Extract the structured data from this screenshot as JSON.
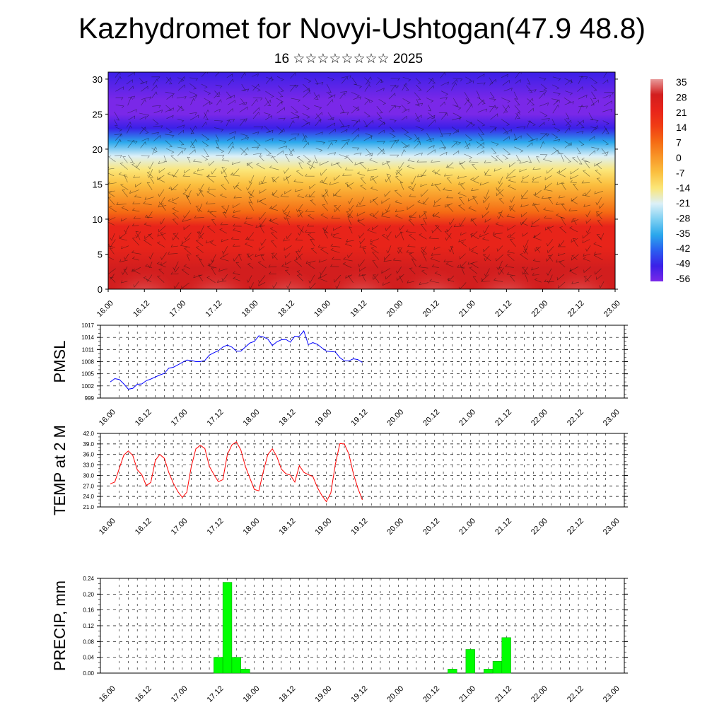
{
  "title": "Kazhydromet for Novyi-Ushtogan(47.9 48.8)",
  "subtitle": "16 ☆☆☆☆☆☆☆☆ 2025",
  "time_labels": [
    "16.00",
    "16.12",
    "17.00",
    "17.12",
    "18.00",
    "18.12",
    "19.00",
    "19.12",
    "20.00",
    "20.12",
    "21.00",
    "21.12",
    "22.00",
    "22.12",
    "23.00"
  ],
  "chart_data": [
    {
      "type": "heatmap",
      "title": "",
      "xlabel": "",
      "ylabel": "",
      "x": [
        "16.00",
        "16.12",
        "17.00",
        "17.12",
        "18.00",
        "18.12",
        "19.00",
        "19.12",
        "20.00",
        "20.12",
        "21.00",
        "21.12",
        "22.00",
        "22.12",
        "23.00"
      ],
      "yticks": [
        0,
        5,
        10,
        15,
        20,
        25,
        30
      ],
      "ylim": [
        0,
        31
      ],
      "colorbar": {
        "labels": [
          "35",
          "28",
          "21",
          "14",
          "7",
          "0",
          "-7",
          "-14",
          "-21",
          "-28",
          "-35",
          "-42",
          "-49",
          "-56"
        ],
        "colors": [
          "#e89a9a",
          "#d21e1e",
          "#e8241a",
          "#f03c14",
          "#f56a14",
          "#f89628",
          "#fbc040",
          "#fbe678",
          "#dcf0f8",
          "#7fd0f2",
          "#2aa8ec",
          "#2a5ef0",
          "#3a20e8",
          "#7a28e8"
        ]
      },
      "profile": [
        {
          "height": 0,
          "value": 30
        },
        {
          "height": 3,
          "value": 28
        },
        {
          "height": 6,
          "value": 24
        },
        {
          "height": 9,
          "value": 18
        },
        {
          "height": 11,
          "value": 10
        },
        {
          "height": 13,
          "value": 0
        },
        {
          "height": 15,
          "value": -8
        },
        {
          "height": 17,
          "value": -14
        },
        {
          "height": 19,
          "value": -24
        },
        {
          "height": 21,
          "value": -36
        },
        {
          "height": 23,
          "value": -46
        },
        {
          "height": 25,
          "value": -56
        },
        {
          "height": 27,
          "value": -54
        },
        {
          "height": 31,
          "value": -52
        }
      ],
      "overlay": "wind barbs"
    },
    {
      "type": "line",
      "ylabel": "PMSL",
      "ylim": [
        999,
        1017
      ],
      "yticks": [
        999,
        1002,
        1005,
        1008,
        1011,
        1014,
        1017
      ],
      "series": [
        {
          "color": "#0000ff",
          "values": [
            1003,
            1003.8,
            1003.6,
            1002.5,
            1001.2,
            1001.4,
            1002.4,
            1002.5,
            1003.3,
            1003.7,
            1004.2,
            1004.7,
            1005.1,
            1006.4,
            1006.6,
            1007.2,
            1007.8,
            1008.4,
            1008.3,
            1008,
            1008,
            1008.3,
            1009.6,
            1010.2,
            1010.7,
            1011.6,
            1012.1,
            1011.6,
            1010.6,
            1010.6,
            1011.6,
            1012.6,
            1013,
            1014.4,
            1014.1,
            1013.6,
            1012,
            1012.9,
            1013.4,
            1013.5,
            1012.8,
            1014.3,
            1014.3,
            1015.6,
            1012.2,
            1012.7,
            1012.3,
            1011.4,
            1010.6,
            1010.5,
            1010.4,
            1009,
            1008.2,
            1008.2,
            1008.7,
            1008.5,
            1007.8
          ]
        }
      ]
    },
    {
      "type": "line",
      "ylabel": "TEMP at 2 M",
      "ylim": [
        21,
        42
      ],
      "yticks": [
        "21.0",
        "24.0",
        "27.0",
        "30.0",
        "33.0",
        "36.0",
        "39.0",
        "42.0"
      ],
      "series": [
        {
          "color": "#ff0000",
          "values": [
            27.6,
            28.1,
            32,
            35.8,
            37,
            35.7,
            31.6,
            30.2,
            27.1,
            28,
            34.3,
            36,
            34.9,
            30.8,
            27.8,
            25.4,
            23.7,
            25.2,
            32.6,
            37.6,
            38.6,
            37.7,
            32.6,
            30.3,
            28.2,
            28.8,
            35.9,
            38.7,
            39.6,
            37.3,
            32.6,
            29.3,
            26,
            25.6,
            31.1,
            36,
            37.6,
            35.4,
            31.8,
            30.5,
            30.1,
            28.1,
            32.8,
            30.9,
            30.2,
            29.7,
            26.6,
            24.3,
            22.5,
            25,
            33.2,
            39.1,
            39,
            36.1,
            30.5,
            26.4,
            23
          ]
        }
      ]
    },
    {
      "type": "bar",
      "ylabel": "PRECIP, mm",
      "ylim": [
        0,
        0.24
      ],
      "yticks": [
        "0.00",
        "0.04",
        "0.08",
        "0.12",
        "0.16",
        "0.20",
        "0.24"
      ],
      "color": "#00ff00",
      "bars": [
        {
          "slot": 12,
          "value": 0.04
        },
        {
          "slot": 13,
          "value": 0.23
        },
        {
          "slot": 14,
          "value": 0.04
        },
        {
          "slot": 15,
          "value": 0.01
        },
        {
          "slot": 38,
          "value": 0.01
        },
        {
          "slot": 40,
          "value": 0.06
        },
        {
          "slot": 42,
          "value": 0.01
        },
        {
          "slot": 43,
          "value": 0.03
        },
        {
          "slot": 44,
          "value": 0.09
        }
      ]
    }
  ]
}
